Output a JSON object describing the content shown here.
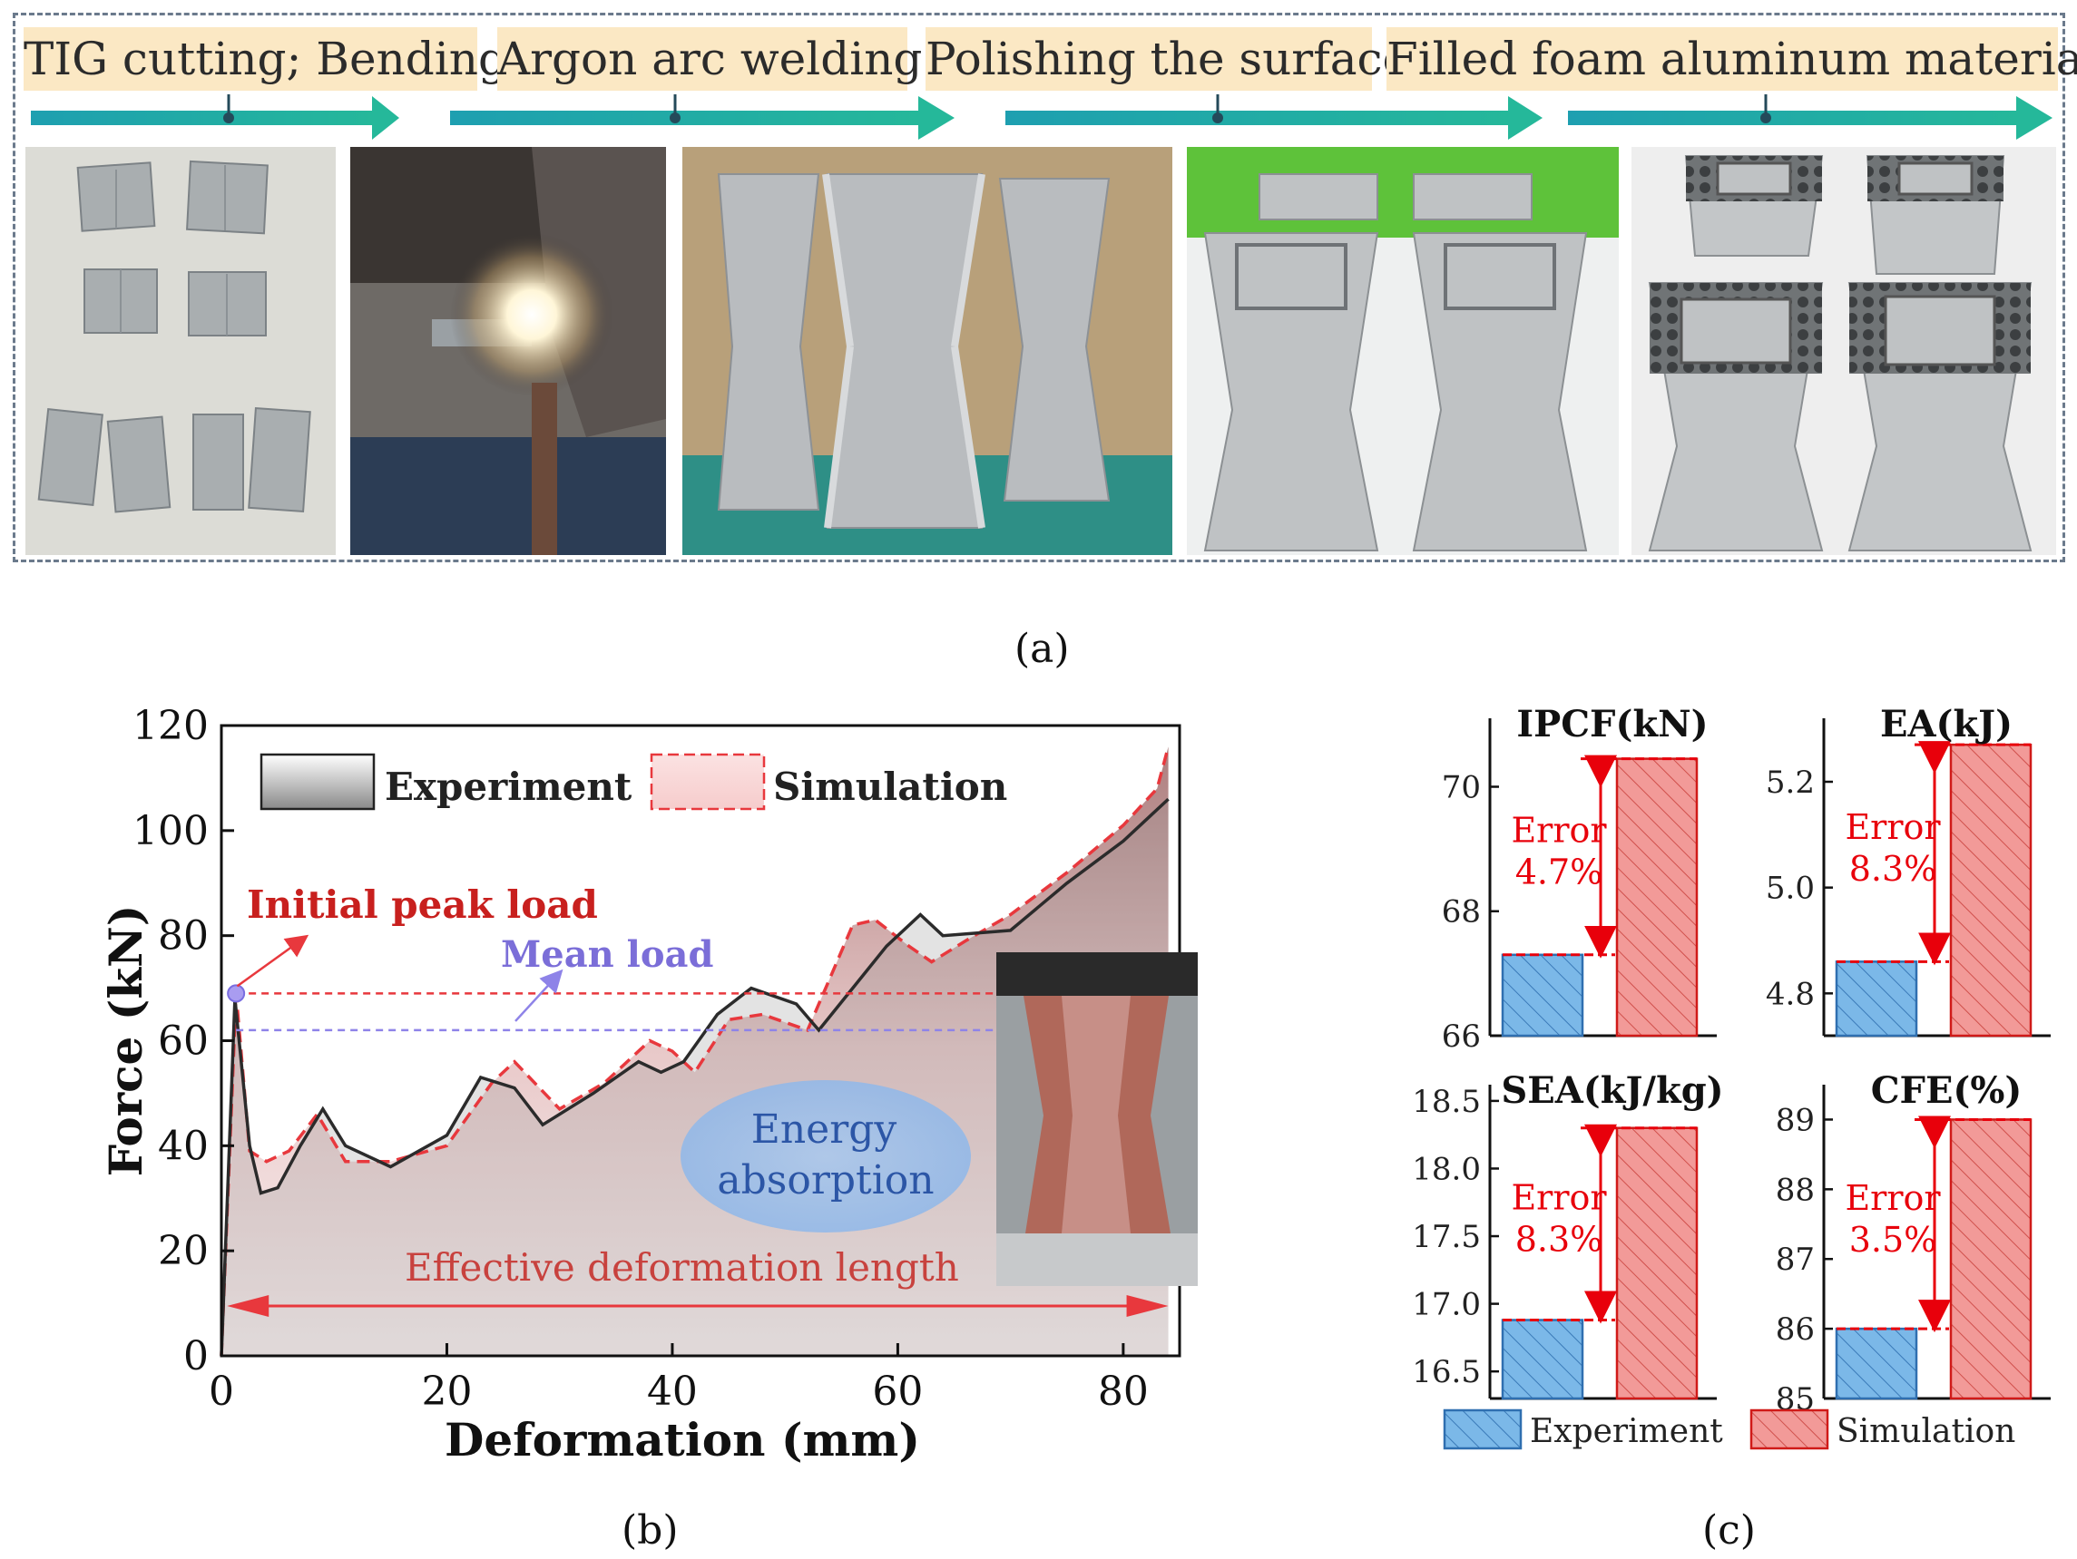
{
  "figure": {
    "process_steps": [
      {
        "label": "TIG cutting; Bending"
      },
      {
        "label": "Argon arc welding"
      },
      {
        "label": "Polishing the surface"
      },
      {
        "label": "Filled foam aluminum material"
      }
    ],
    "captions": {
      "a": "(a)",
      "b": "(b)",
      "c": "(c)"
    },
    "colors": {
      "experiment": "#4f86c6",
      "simulation": "#e8383d",
      "arrow_teal": "#23a9a6",
      "label_bg": "#fbe8c4"
    }
  },
  "chart_data": [
    {
      "type": "line",
      "xlabel": "Deformation (mm)",
      "ylabel": "Force (kN)",
      "xlim": [
        0,
        85
      ],
      "ylim": [
        0,
        120
      ],
      "xticks": [
        0,
        20,
        40,
        60,
        80
      ],
      "yticks": [
        0,
        20,
        40,
        60,
        80,
        100,
        120
      ],
      "series": [
        {
          "name": "Experiment",
          "x": [
            0,
            1.2,
            2.5,
            3.5,
            5,
            7,
            9,
            11,
            15,
            20,
            23,
            26,
            28.5,
            33,
            37,
            39,
            41,
            44,
            47,
            51,
            53,
            56,
            59,
            62,
            64,
            70,
            75,
            80,
            84
          ],
          "y": [
            0,
            68,
            40,
            31,
            32,
            40,
            47,
            40,
            36,
            42,
            53,
            51,
            44,
            50,
            56,
            54,
            56,
            65,
            70,
            67,
            62,
            70,
            78,
            84,
            80,
            81,
            90,
            98,
            106
          ]
        },
        {
          "name": "Simulation",
          "x": [
            0,
            1.3,
            2.5,
            4,
            6,
            8.5,
            11,
            15,
            20,
            24,
            26,
            30,
            34,
            38,
            40,
            42,
            45,
            48,
            52,
            54,
            56,
            58,
            61,
            63,
            66,
            70,
            75,
            80,
            83,
            84
          ],
          "y": [
            0,
            69,
            39,
            37,
            39,
            46,
            37,
            37,
            40,
            52,
            56,
            47,
            52,
            60,
            58,
            54,
            64,
            65,
            62,
            72,
            82,
            83,
            78,
            75,
            79,
            84,
            92,
            101,
            108,
            116
          ]
        }
      ],
      "reference_lines": [
        {
          "name": "Initial peak load",
          "y": 69
        },
        {
          "name": "Mean load",
          "y": 62
        }
      ],
      "annotations": {
        "initial_peak_load": "Initial peak load",
        "mean_load": "Mean load",
        "energy_absorption_1": "Energy",
        "energy_absorption_2": "absorption",
        "effective_length": "Effective deformation length"
      },
      "legend": {
        "placement": "top-left",
        "entries": [
          "Experiment",
          "Simulation"
        ]
      }
    },
    {
      "type": "bar",
      "title": "IPCF(kN)",
      "categories": [
        "Experiment",
        "Simulation"
      ],
      "values": [
        67.3,
        70.45
      ],
      "ylim": [
        66,
        71.1
      ],
      "yticks": [
        66,
        68,
        70
      ],
      "annotation": {
        "line1": "Error",
        "line2": "4.7%"
      }
    },
    {
      "type": "bar",
      "title": "EA(kJ)",
      "categories": [
        "Experiment",
        "Simulation"
      ],
      "values": [
        4.86,
        5.27
      ],
      "ylim": [
        4.72,
        5.32
      ],
      "yticks": [
        4.8,
        5.0,
        5.2
      ],
      "tick_labels": [
        "4.8",
        "5.0",
        "5.2"
      ],
      "annotation": {
        "line1": "Error",
        "line2": "8.3%"
      }
    },
    {
      "type": "bar",
      "title": "SEA(kJ/kg)",
      "categories": [
        "Experiment",
        "Simulation"
      ],
      "values": [
        16.88,
        18.3
      ],
      "ylim": [
        16.3,
        18.62
      ],
      "yticks": [
        16.5,
        17.0,
        17.5,
        18.0,
        18.5
      ],
      "tick_labels": [
        "16.5",
        "17.0",
        "17.5",
        "18.0",
        "18.5"
      ],
      "annotation": {
        "line1": "Error",
        "line2": "8.3%"
      }
    },
    {
      "type": "bar",
      "title": "CFE(%)",
      "categories": [
        "Experiment",
        "Simulation"
      ],
      "values": [
        86.0,
        89.0
      ],
      "ylim": [
        85,
        89.5
      ],
      "yticks": [
        85,
        86,
        87,
        88,
        89
      ],
      "annotation": {
        "line1": "Error",
        "line2": "3.5%"
      }
    }
  ],
  "bar_legend": {
    "experiment": "Experiment",
    "simulation": "Simulation"
  }
}
